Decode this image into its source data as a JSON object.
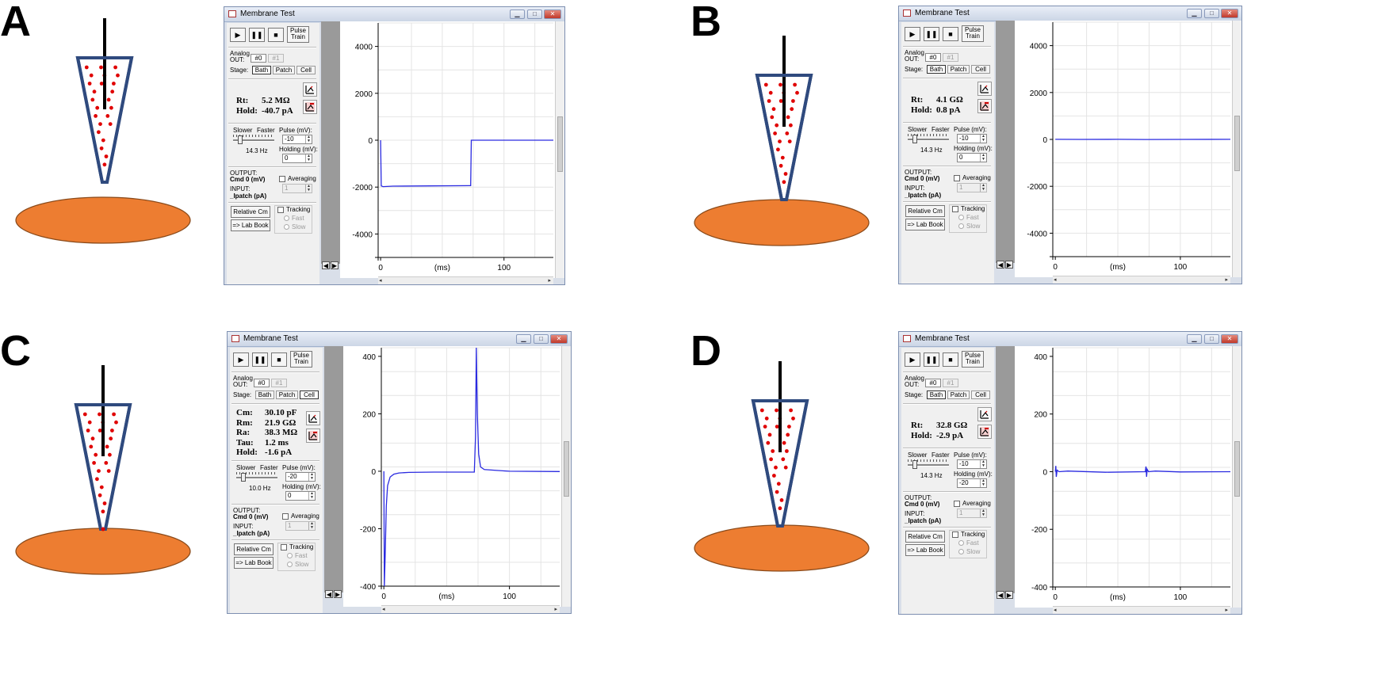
{
  "panels": [
    {
      "letter": "A",
      "pipette_contact": "none",
      "window": {
        "title": "Membrane Test",
        "buttons": {
          "pulse_train": [
            "Pulse",
            "Train"
          ]
        },
        "analog_out_label": [
          "Analog",
          "OUT:"
        ],
        "analog_out": [
          "#0",
          "#1"
        ],
        "stage_label": "Stage:",
        "stages": [
          "Bath",
          "Patch",
          "Cell"
        ],
        "selected_stage": "Bath",
        "measurements": [
          {
            "label": "Rt:",
            "value": "5.2 MΩ"
          },
          {
            "label": "Hold:",
            "value": "-40.7 pA"
          }
        ],
        "slower": "Slower",
        "faster": "Faster",
        "rate": "14.3 Hz",
        "pulse_label": "Pulse (mV):",
        "pulse_value": "-10",
        "holding_label": "Holding (mV):",
        "holding_value": "0",
        "output_label": "OUTPUT:",
        "output_value": "Cmd 0 (mV)",
        "input_label": "INPUT:",
        "input_value": "_Ipatch (pA)",
        "averaging_label": "Averaging",
        "averaging_value": "1",
        "relative_cm": "Relative Cm",
        "lab_book": "=> Lab Book",
        "tracking_label": "Tracking",
        "fast_label": "Fast",
        "slow_label": "Slow",
        "y_axis_label": [
          "_Ipatch",
          "(pA)"
        ],
        "x_axis_label": "(ms)"
      },
      "chart_data": {
        "type": "line",
        "xlabel": "(ms)",
        "ylabel": "_Ipatch (pA)",
        "ylim": [
          -5000,
          5000
        ],
        "xlim": [
          -2,
          140
        ],
        "yticks": [
          4000,
          2000,
          0,
          -2000,
          -4000
        ],
        "xticks": [
          0,
          100
        ],
        "series": [
          {
            "x": [
              0,
              0.5,
              2,
              10,
              40,
              72,
              73,
              73.5,
              100,
              140
            ],
            "y": [
              0,
              -1950,
              -1980,
              -1960,
              -1950,
              -1940,
              -1940,
              0,
              0,
              0
            ]
          }
        ]
      }
    },
    {
      "letter": "B",
      "pipette_contact": "touch",
      "window": {
        "title": "Membrane Test",
        "buttons": {
          "pulse_train": [
            "Pulse",
            "Train"
          ]
        },
        "analog_out_label": [
          "Analog",
          "OUT:"
        ],
        "analog_out": [
          "#0",
          "#1"
        ],
        "stage_label": "Stage:",
        "stages": [
          "Bath",
          "Patch",
          "Cell"
        ],
        "selected_stage": "Bath",
        "measurements": [
          {
            "label": "Rt:",
            "value": "4.1 GΩ"
          },
          {
            "label": "Hold:",
            "value": "0.8 pA"
          }
        ],
        "slower": "Slower",
        "faster": "Faster",
        "rate": "14.3 Hz",
        "pulse_label": "Pulse (mV):",
        "pulse_value": "-10",
        "holding_label": "Holding (mV):",
        "holding_value": "0",
        "output_label": "OUTPUT:",
        "output_value": "Cmd 0 (mV)",
        "input_label": "INPUT:",
        "input_value": "_Ipatch (pA)",
        "averaging_label": "Averaging",
        "averaging_value": "1",
        "relative_cm": "Relative Cm",
        "lab_book": "=> Lab Book",
        "tracking_label": "Tracking",
        "fast_label": "Fast",
        "slow_label": "Slow",
        "y_axis_label": [
          "_Ipatch",
          "(pA)"
        ],
        "x_axis_label": "(ms)"
      },
      "chart_data": {
        "type": "line",
        "xlabel": "(ms)",
        "ylabel": "_Ipatch (pA)",
        "ylim": [
          -5000,
          5000
        ],
        "xlim": [
          -2,
          140
        ],
        "yticks": [
          4000,
          2000,
          0,
          -2000,
          -4000
        ],
        "xticks": [
          0,
          100
        ],
        "series": [
          {
            "x": [
              0,
              20,
              50,
              72,
              100,
              140
            ],
            "y": [
              5,
              0,
              3,
              -5,
              0,
              2
            ]
          }
        ]
      }
    },
    {
      "letter": "C",
      "pipette_contact": "open",
      "window": {
        "title": "Membrane Test",
        "buttons": {
          "pulse_train": [
            "Pulse",
            "Train"
          ]
        },
        "analog_out_label": [
          "Analog",
          "OUT:"
        ],
        "analog_out": [
          "#0",
          "#1"
        ],
        "stage_label": "Stage:",
        "stages": [
          "Bath",
          "Patch",
          "Cell"
        ],
        "selected_stage": "Cell",
        "measurements": [
          {
            "label": "Cm:",
            "value": "30.10 pF"
          },
          {
            "label": "Rm:",
            "value": "21.9 GΩ"
          },
          {
            "label": "Ra:",
            "value": "38.3 MΩ"
          },
          {
            "label": "Tau:",
            "value": "1.2 ms"
          },
          {
            "label": "Hold:",
            "value": "-1.6 pA"
          }
        ],
        "slower": "Slower",
        "faster": "Faster",
        "rate": "10.0 Hz",
        "pulse_label": "Pulse (mV):",
        "pulse_value": "-20",
        "holding_label": "Holding (mV):",
        "holding_value": "0",
        "output_label": "OUTPUT:",
        "output_value": "Cmd 0 (mV)",
        "input_label": "INPUT:",
        "input_value": "_Ipatch (pA)",
        "averaging_label": "Averaging",
        "averaging_value": "1",
        "relative_cm": "Relative Cm",
        "lab_book": "=> Lab Book",
        "tracking_label": "Tracking",
        "fast_label": "Fast",
        "slow_label": "Slow",
        "y_axis_label": [
          "_Ipatch",
          "(pA)"
        ],
        "x_axis_label": "(ms)"
      },
      "chart_data": {
        "type": "line",
        "xlabel": "(ms)",
        "ylabel": "_Ipatch (pA)",
        "ylim": [
          -400,
          430
        ],
        "xlim": [
          -2,
          140
        ],
        "yticks": [
          400,
          200,
          0,
          -200,
          -400
        ],
        "xticks": [
          0,
          100
        ],
        "series": [
          {
            "x": [
              0,
              0.4,
              1,
              2,
              3,
              5,
              8,
              12,
              20,
              40,
              72,
              73,
              73.6,
              74.4,
              75.5,
              77,
              80,
              90,
              100,
              140
            ],
            "y": [
              0,
              -420,
              -300,
              -120,
              -50,
              -20,
              -10,
              -6,
              -4,
              -3,
              -3,
              120,
              430,
              200,
              60,
              15,
              6,
              3,
              0,
              -1
            ]
          }
        ]
      }
    },
    {
      "letter": "D",
      "pipette_contact": "touch",
      "window": {
        "title": "Membrane Test",
        "buttons": {
          "pulse_train": [
            "Pulse",
            "Train"
          ]
        },
        "analog_out_label": [
          "Analog",
          "OUT:"
        ],
        "analog_out": [
          "#0",
          "#1"
        ],
        "stage_label": "Stage:",
        "stages": [
          "Bath",
          "Patch",
          "Cell"
        ],
        "selected_stage": "Bath",
        "measurements": [
          {
            "label": "Rt:",
            "value": "32.8 GΩ"
          },
          {
            "label": "Hold:",
            "value": "-2.9 pA"
          }
        ],
        "slower": "Slower",
        "faster": "Faster",
        "rate": "14.3 Hz",
        "pulse_label": "Pulse (mV):",
        "pulse_value": "-10",
        "holding_label": "Holding (mV):",
        "holding_value": "-20",
        "output_label": "OUTPUT:",
        "output_value": "Cmd 0 (mV)",
        "input_label": "INPUT:",
        "input_value": "_Ipatch (pA)",
        "averaging_label": "Averaging",
        "averaging_value": "1",
        "relative_cm": "Relative Cm",
        "lab_book": "=> Lab Book",
        "tracking_label": "Tracking",
        "fast_label": "Fast",
        "slow_label": "Slow",
        "y_axis_label": [
          "_Ipatch",
          "(pA)"
        ],
        "x_axis_label": "(ms)"
      },
      "chart_data": {
        "type": "line",
        "xlabel": "(ms)",
        "ylabel": "_Ipatch (pA)",
        "ylim": [
          -400,
          430
        ],
        "xlim": [
          -2,
          140
        ],
        "yticks": [
          400,
          200,
          0,
          -200,
          -400
        ],
        "xticks": [
          0,
          100
        ],
        "series": [
          {
            "x": [
              0,
              0.4,
              0.8,
              1.5,
              3,
              10,
              40,
              72,
              72.5,
              73,
              73.5,
              74.5,
              80,
              100,
              140
            ],
            "y": [
              0,
              20,
              -18,
              5,
              0,
              2,
              -2,
              0,
              18,
              -18,
              8,
              0,
              2,
              -1,
              0
            ]
          }
        ]
      }
    }
  ],
  "style": {
    "pipette_stroke": "#2f4a7e",
    "dot_color": "#e00000",
    "cell_fill": "#ed7d31",
    "cell_stroke": "#8a4a1a",
    "trace_color": "#2a2ae0",
    "trace_accent": "#e02020"
  }
}
